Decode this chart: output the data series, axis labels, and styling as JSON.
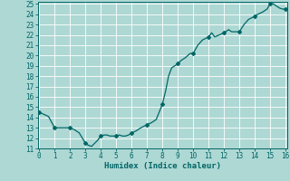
{
  "title": "",
  "xlabel": "Humidex (Indice chaleur)",
  "ylabel": "",
  "background_color": "#aed8d4",
  "grid_color": "#ffffff",
  "line_color": "#006666",
  "marker_color": "#006666",
  "xlim": [
    -0.1,
    16.1
  ],
  "ylim": [
    11,
    25.2
  ],
  "xticks": [
    0,
    1,
    2,
    3,
    4,
    5,
    6,
    7,
    8,
    9,
    10,
    11,
    12,
    13,
    14,
    15,
    16
  ],
  "yticks": [
    11,
    12,
    13,
    14,
    15,
    16,
    17,
    18,
    19,
    20,
    21,
    22,
    23,
    24,
    25
  ],
  "x": [
    0,
    0.3,
    0.6,
    1.0,
    1.4,
    1.7,
    2.0,
    2.3,
    2.6,
    3.0,
    3.2,
    3.4,
    3.6,
    3.8,
    4.0,
    4.2,
    4.4,
    4.6,
    4.8,
    5.0,
    5.2,
    5.4,
    5.6,
    5.8,
    6.0,
    6.3,
    6.6,
    7.0,
    7.3,
    7.6,
    8.0,
    8.2,
    8.4,
    8.6,
    8.8,
    9.0,
    9.2,
    9.5,
    9.8,
    10.0,
    10.3,
    10.6,
    11.0,
    11.2,
    11.4,
    11.7,
    12.0,
    12.3,
    12.5,
    12.8,
    13.0,
    13.3,
    13.6,
    14.0,
    14.2,
    14.5,
    14.8,
    15.0,
    15.2,
    15.4,
    15.6,
    15.8,
    16.0
  ],
  "y": [
    14.5,
    14.3,
    14.1,
    13.0,
    13.0,
    13.0,
    13.0,
    12.8,
    12.5,
    11.5,
    11.3,
    11.2,
    11.5,
    11.8,
    12.2,
    12.3,
    12.3,
    12.2,
    12.2,
    12.2,
    12.3,
    12.2,
    12.2,
    12.3,
    12.5,
    12.7,
    13.0,
    13.3,
    13.5,
    13.8,
    15.3,
    16.5,
    18.0,
    18.8,
    19.0,
    19.2,
    19.5,
    19.8,
    20.2,
    20.2,
    21.0,
    21.5,
    21.8,
    22.2,
    21.8,
    22.0,
    22.2,
    22.5,
    22.3,
    22.3,
    22.3,
    23.0,
    23.5,
    23.8,
    24.0,
    24.2,
    24.5,
    25.0,
    25.0,
    24.8,
    24.6,
    24.5,
    24.5
  ],
  "marker_x": [
    0,
    1,
    2,
    3,
    4,
    5,
    6,
    7,
    8,
    9,
    10,
    11,
    12,
    13,
    14,
    15,
    16
  ],
  "marker_y": [
    14.5,
    13.0,
    13.0,
    11.5,
    12.2,
    12.2,
    12.5,
    13.3,
    15.3,
    19.2,
    20.2,
    21.8,
    22.2,
    22.3,
    23.8,
    25.0,
    24.5
  ]
}
